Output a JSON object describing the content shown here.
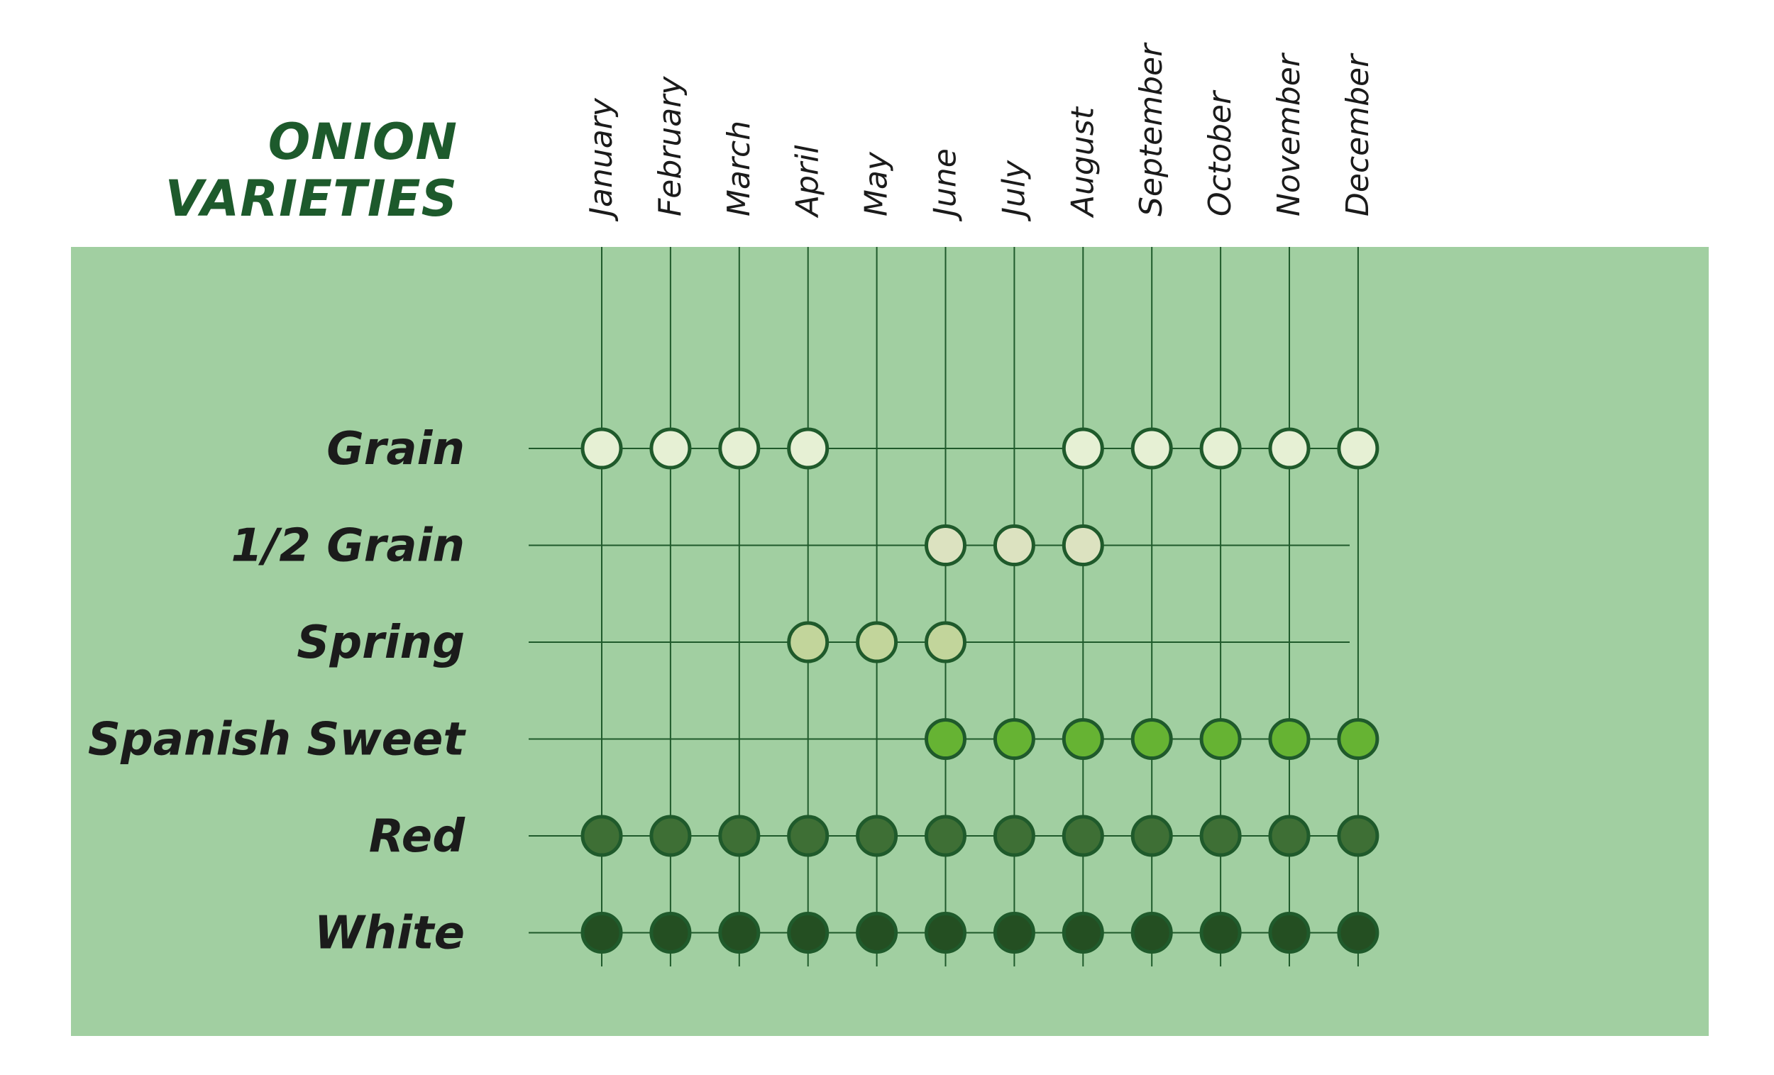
{
  "chart_data": {
    "type": "scatter",
    "title_lines": [
      "ONION",
      "VARIETIES"
    ],
    "months": [
      "January",
      "February",
      "March",
      "April",
      "May",
      "June",
      "July",
      "August",
      "September",
      "October",
      "November",
      "December"
    ],
    "varieties": [
      {
        "name": "Grain",
        "color": "#e6f0d4",
        "months": [
          "January",
          "February",
          "March",
          "April",
          "August",
          "September",
          "October",
          "November",
          "December"
        ]
      },
      {
        "name": "1/2 Grain",
        "color": "#dce2c0",
        "months": [
          "June",
          "July",
          "August"
        ]
      },
      {
        "name": "Spring",
        "color": "#c2d59b",
        "months": [
          "April",
          "May",
          "June"
        ]
      },
      {
        "name": "Spanish Sweet",
        "color": "#66b333",
        "months": [
          "June",
          "July",
          "August",
          "September",
          "October",
          "November",
          "December"
        ]
      },
      {
        "name": "Red",
        "color": "#3e6f35",
        "months": [
          "January",
          "February",
          "March",
          "April",
          "May",
          "June",
          "July",
          "August",
          "September",
          "October",
          "November",
          "December"
        ]
      },
      {
        "name": "White",
        "color": "#244f22",
        "months": [
          "January",
          "February",
          "March",
          "April",
          "May",
          "June",
          "July",
          "August",
          "September",
          "October",
          "November",
          "December"
        ]
      }
    ],
    "panel_color": "#a1cfa1",
    "line_color": "#1f5a2b",
    "title_color": "#1d5a2c",
    "grid": true
  }
}
